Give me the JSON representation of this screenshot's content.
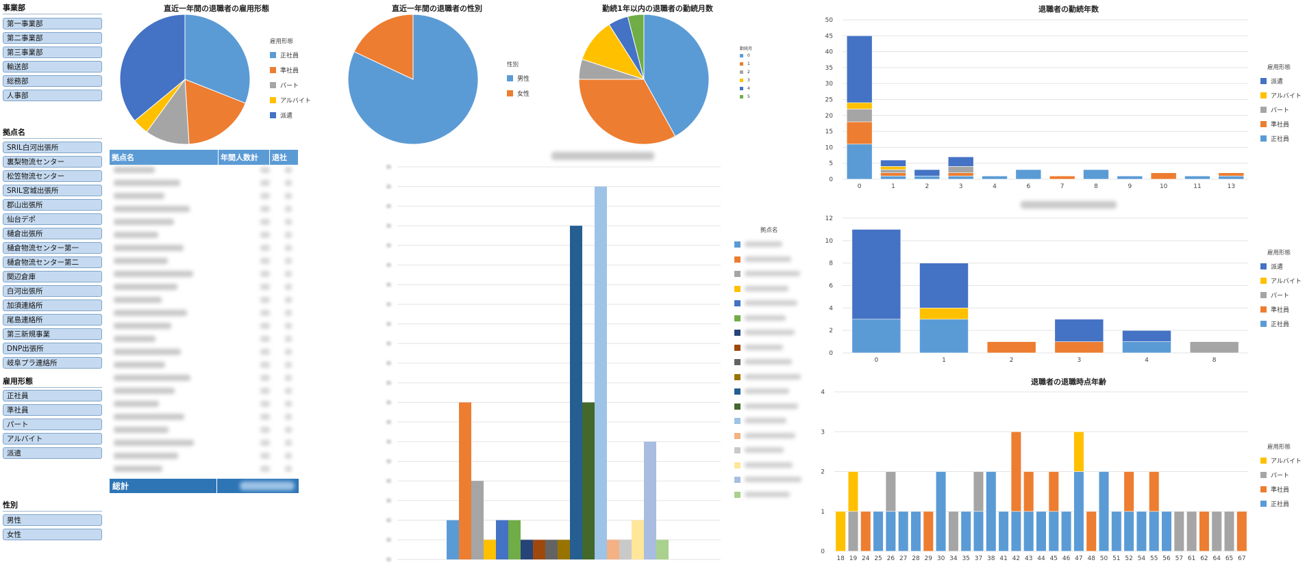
{
  "slicers": {
    "division": {
      "title": "事業部",
      "items": [
        "第一事業部",
        "第二事業部",
        "第三事業部",
        "輸送部",
        "総務部",
        "人事部"
      ]
    },
    "site": {
      "title": "拠点名",
      "items": [
        "SRIL白河出張所",
        "裏梨物流センター",
        "松笠物流センター",
        "SRIL宮城出張所",
        "郡山出張所",
        "仙台デポ",
        "樋倉出張所",
        "樋倉物流センター第一",
        "樋倉物流センター第二",
        "関辺倉庫",
        "白河出張所",
        "加須連絡所",
        "尾島連絡所",
        "第三新規事業",
        "DNP出張所",
        "岐阜プラ連絡所"
      ]
    },
    "employment": {
      "title": "雇用形態",
      "items": [
        "正社員",
        "準社員",
        "パート",
        "アルバイト",
        "派遣"
      ]
    },
    "gender": {
      "title": "性別",
      "items": [
        "男性",
        "女性"
      ]
    }
  },
  "pivot_table": {
    "headers": [
      "拠点名",
      "年間人数計",
      "退社"
    ],
    "total_label": "総計",
    "blurred_rows": 24
  },
  "colors": {
    "seishain": "#5b9bd5",
    "junshain": "#ed7d31",
    "part": "#a5a5a5",
    "arbeit": "#ffc000",
    "haken": "#4472c4",
    "green": "#70ad47"
  },
  "chart_data": [
    {
      "id": "pie_employment",
      "type": "pie",
      "title": "直近一年間の退職者の雇用形態",
      "legend_title": "雇用形態",
      "legend_position": "right",
      "slices": [
        {
          "label": "正社員",
          "value": 31,
          "color": "#5b9bd5"
        },
        {
          "label": "準社員",
          "value": 18,
          "color": "#ed7d31"
        },
        {
          "label": "パート",
          "value": 11,
          "color": "#a5a5a5"
        },
        {
          "label": "アルバイト",
          "value": 4,
          "color": "#ffc000"
        },
        {
          "label": "派遣",
          "value": 36,
          "color": "#4472c4"
        }
      ]
    },
    {
      "id": "pie_gender",
      "type": "pie",
      "title": "直近一年間の退職者の性別",
      "legend_title": "性別",
      "legend_position": "right",
      "slices": [
        {
          "label": "男性",
          "value": 82,
          "color": "#5b9bd5"
        },
        {
          "label": "女性",
          "value": 18,
          "color": "#ed7d31"
        }
      ]
    },
    {
      "id": "pie_months",
      "type": "pie",
      "title": "勤続1年以内の退職者の勤続月数",
      "legend_title": "勤続月",
      "legend_position": "right",
      "slices": [
        {
          "label": "0",
          "value": 42,
          "color": "#5b9bd5"
        },
        {
          "label": "1",
          "value": 33,
          "color": "#ed7d31"
        },
        {
          "label": "2",
          "value": 5,
          "color": "#a5a5a5"
        },
        {
          "label": "3",
          "value": 11,
          "color": "#ffc000"
        },
        {
          "label": "4",
          "value": 5,
          "color": "#4472c4"
        },
        {
          "label": "5",
          "value": 4,
          "color": "#70ad47"
        }
      ]
    },
    {
      "id": "bar_sites",
      "type": "bar",
      "title": "",
      "legend_title": "拠点名",
      "legend_position": "right",
      "ylim": [
        0,
        20
      ],
      "grid": true,
      "values": [
        2,
        8,
        4,
        1,
        2,
        2,
        1,
        1,
        1,
        1,
        17,
        8,
        19,
        1,
        1,
        2,
        6,
        1
      ],
      "colors": [
        "#5b9bd5",
        "#ed7d31",
        "#a5a5a5",
        "#ffc000",
        "#4472c4",
        "#70ad47",
        "#264478",
        "#9e480e",
        "#636363",
        "#997300",
        "#255e91",
        "#43682b",
        "#9dc3e6",
        "#f4b183",
        "#c9c9c9",
        "#ffe699",
        "#a9bde0",
        "#a9d18e"
      ]
    },
    {
      "id": "bar_tenure_years",
      "type": "bar",
      "title": "退職者の勤続年数",
      "legend_title": "雇用形態",
      "legend_position": "right",
      "categories": [
        "0",
        "1",
        "2",
        "3",
        "4",
        "6",
        "7",
        "8",
        "9",
        "10",
        "11",
        "13"
      ],
      "ylim": [
        0,
        50
      ],
      "grid": true,
      "series": [
        {
          "name": "正社員",
          "color": "#5b9bd5",
          "values": [
            11,
            1,
            1,
            1,
            1,
            3,
            0,
            3,
            1,
            0,
            1,
            1
          ]
        },
        {
          "name": "準社員",
          "color": "#ed7d31",
          "values": [
            7,
            1,
            0,
            1,
            0,
            0,
            1,
            0,
            0,
            2,
            0,
            1
          ]
        },
        {
          "name": "パート",
          "color": "#a5a5a5",
          "values": [
            4,
            1,
            0,
            2,
            0,
            0,
            0,
            0,
            0,
            0,
            0,
            0
          ]
        },
        {
          "name": "アルバイト",
          "color": "#ffc000",
          "values": [
            2,
            1,
            0,
            0,
            0,
            0,
            0,
            0,
            0,
            0,
            0,
            0
          ]
        },
        {
          "name": "派遣",
          "color": "#4472c4",
          "values": [
            21,
            2,
            2,
            3,
            0,
            0,
            0,
            0,
            0,
            0,
            0,
            0
          ]
        }
      ]
    },
    {
      "id": "bar_tenure_short",
      "type": "bar",
      "title": "",
      "legend_title": "雇用形態",
      "legend_position": "right",
      "categories": [
        "0",
        "1",
        "2",
        "3",
        "4",
        "8"
      ],
      "ylim": [
        0,
        12
      ],
      "grid": true,
      "series": [
        {
          "name": "正社員",
          "color": "#5b9bd5",
          "values": [
            3,
            3,
            0,
            0,
            1,
            0
          ]
        },
        {
          "name": "準社員",
          "color": "#ed7d31",
          "values": [
            0,
            0,
            1,
            1,
            0,
            0
          ]
        },
        {
          "name": "パート",
          "color": "#a5a5a5",
          "values": [
            0,
            0,
            0,
            0,
            0,
            1
          ]
        },
        {
          "name": "アルバイト",
          "color": "#ffc000",
          "values": [
            0,
            1,
            0,
            0,
            0,
            0
          ]
        },
        {
          "name": "派遣",
          "color": "#4472c4",
          "values": [
            8,
            4,
            0,
            2,
            1,
            0
          ]
        }
      ]
    },
    {
      "id": "bar_age",
      "type": "bar",
      "title": "退職者の退職時点年齢",
      "legend_title": "雇用形態",
      "legend_position": "right",
      "categories": [
        "18",
        "19",
        "24",
        "25",
        "26",
        "27",
        "28",
        "29",
        "30",
        "34",
        "35",
        "37",
        "38",
        "41",
        "42",
        "43",
        "44",
        "45",
        "46",
        "47",
        "48",
        "50",
        "51",
        "52",
        "54",
        "55",
        "56",
        "57",
        "61",
        "62",
        "64",
        "65",
        "67"
      ],
      "ylim": [
        0,
        4
      ],
      "grid": true,
      "series": [
        {
          "name": "正社員",
          "color": "#5b9bd5",
          "values": [
            0,
            0,
            0,
            1,
            1,
            1,
            1,
            0,
            2,
            0,
            1,
            1,
            2,
            1,
            1,
            1,
            1,
            1,
            1,
            2,
            0,
            2,
            1,
            1,
            1,
            1,
            1,
            0,
            0,
            0,
            0,
            0,
            0
          ]
        },
        {
          "name": "準社員",
          "color": "#ed7d31",
          "values": [
            0,
            0,
            1,
            0,
            0,
            0,
            0,
            1,
            0,
            0,
            0,
            0,
            0,
            0,
            2,
            1,
            0,
            1,
            0,
            0,
            1,
            0,
            0,
            1,
            0,
            1,
            0,
            0,
            0,
            1,
            0,
            0,
            1
          ]
        },
        {
          "name": "パート",
          "color": "#a5a5a5",
          "values": [
            0,
            1,
            0,
            0,
            1,
            0,
            0,
            0,
            0,
            1,
            0,
            1,
            0,
            0,
            0,
            0,
            0,
            0,
            0,
            0,
            0,
            0,
            0,
            0,
            0,
            0,
            0,
            1,
            1,
            0,
            1,
            1,
            0
          ]
        },
        {
          "name": "アルバイト",
          "color": "#ffc000",
          "values": [
            1,
            1,
            0,
            0,
            0,
            0,
            0,
            0,
            0,
            0,
            0,
            0,
            0,
            0,
            0,
            0,
            0,
            0,
            0,
            1,
            0,
            0,
            0,
            0,
            0,
            0,
            0,
            0,
            0,
            0,
            0,
            0,
            0
          ]
        }
      ]
    }
  ]
}
